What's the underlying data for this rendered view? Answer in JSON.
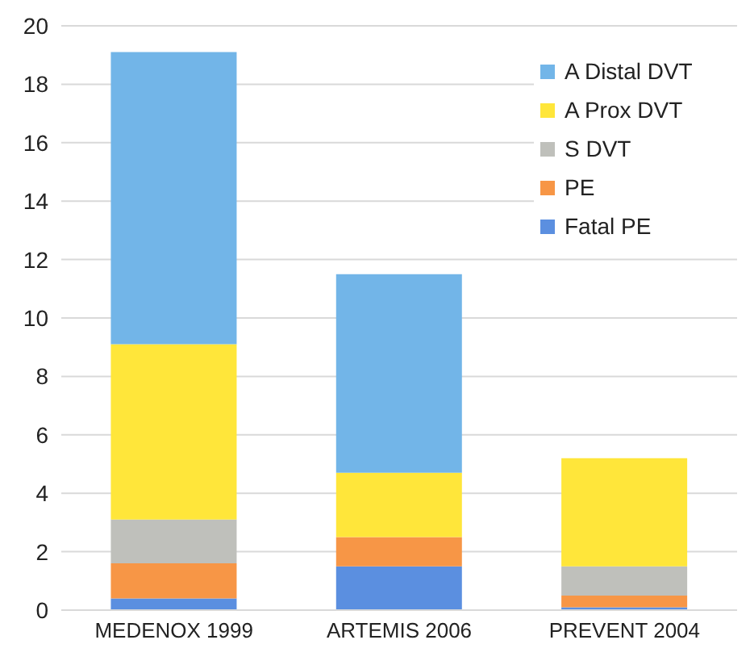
{
  "chart_data": {
    "type": "bar",
    "stacked": true,
    "categories": [
      "MEDENOX 1999",
      "ARTEMIS 2006",
      "PREVENT 2004"
    ],
    "series": [
      {
        "name": "Fatal PE",
        "color": "#5b8fe0",
        "values": [
          0.4,
          1.5,
          0.1
        ]
      },
      {
        "name": "PE",
        "color": "#f79646",
        "values": [
          1.2,
          1.0,
          0.4
        ]
      },
      {
        "name": "S DVT",
        "color": "#bfc0bb",
        "values": [
          1.5,
          0,
          1.0
        ]
      },
      {
        "name": "A Prox DVT",
        "color": "#ffe63a",
        "values": [
          6.0,
          2.2,
          3.7
        ]
      },
      {
        "name": "A Distal DVT",
        "color": "#72b5e8",
        "values": [
          10.0,
          6.8,
          0
        ]
      }
    ],
    "ylim": [
      0,
      20
    ],
    "yticks": [
      0,
      2,
      4,
      6,
      8,
      10,
      12,
      14,
      16,
      18,
      20
    ],
    "grid": "y",
    "legend": "top right"
  }
}
